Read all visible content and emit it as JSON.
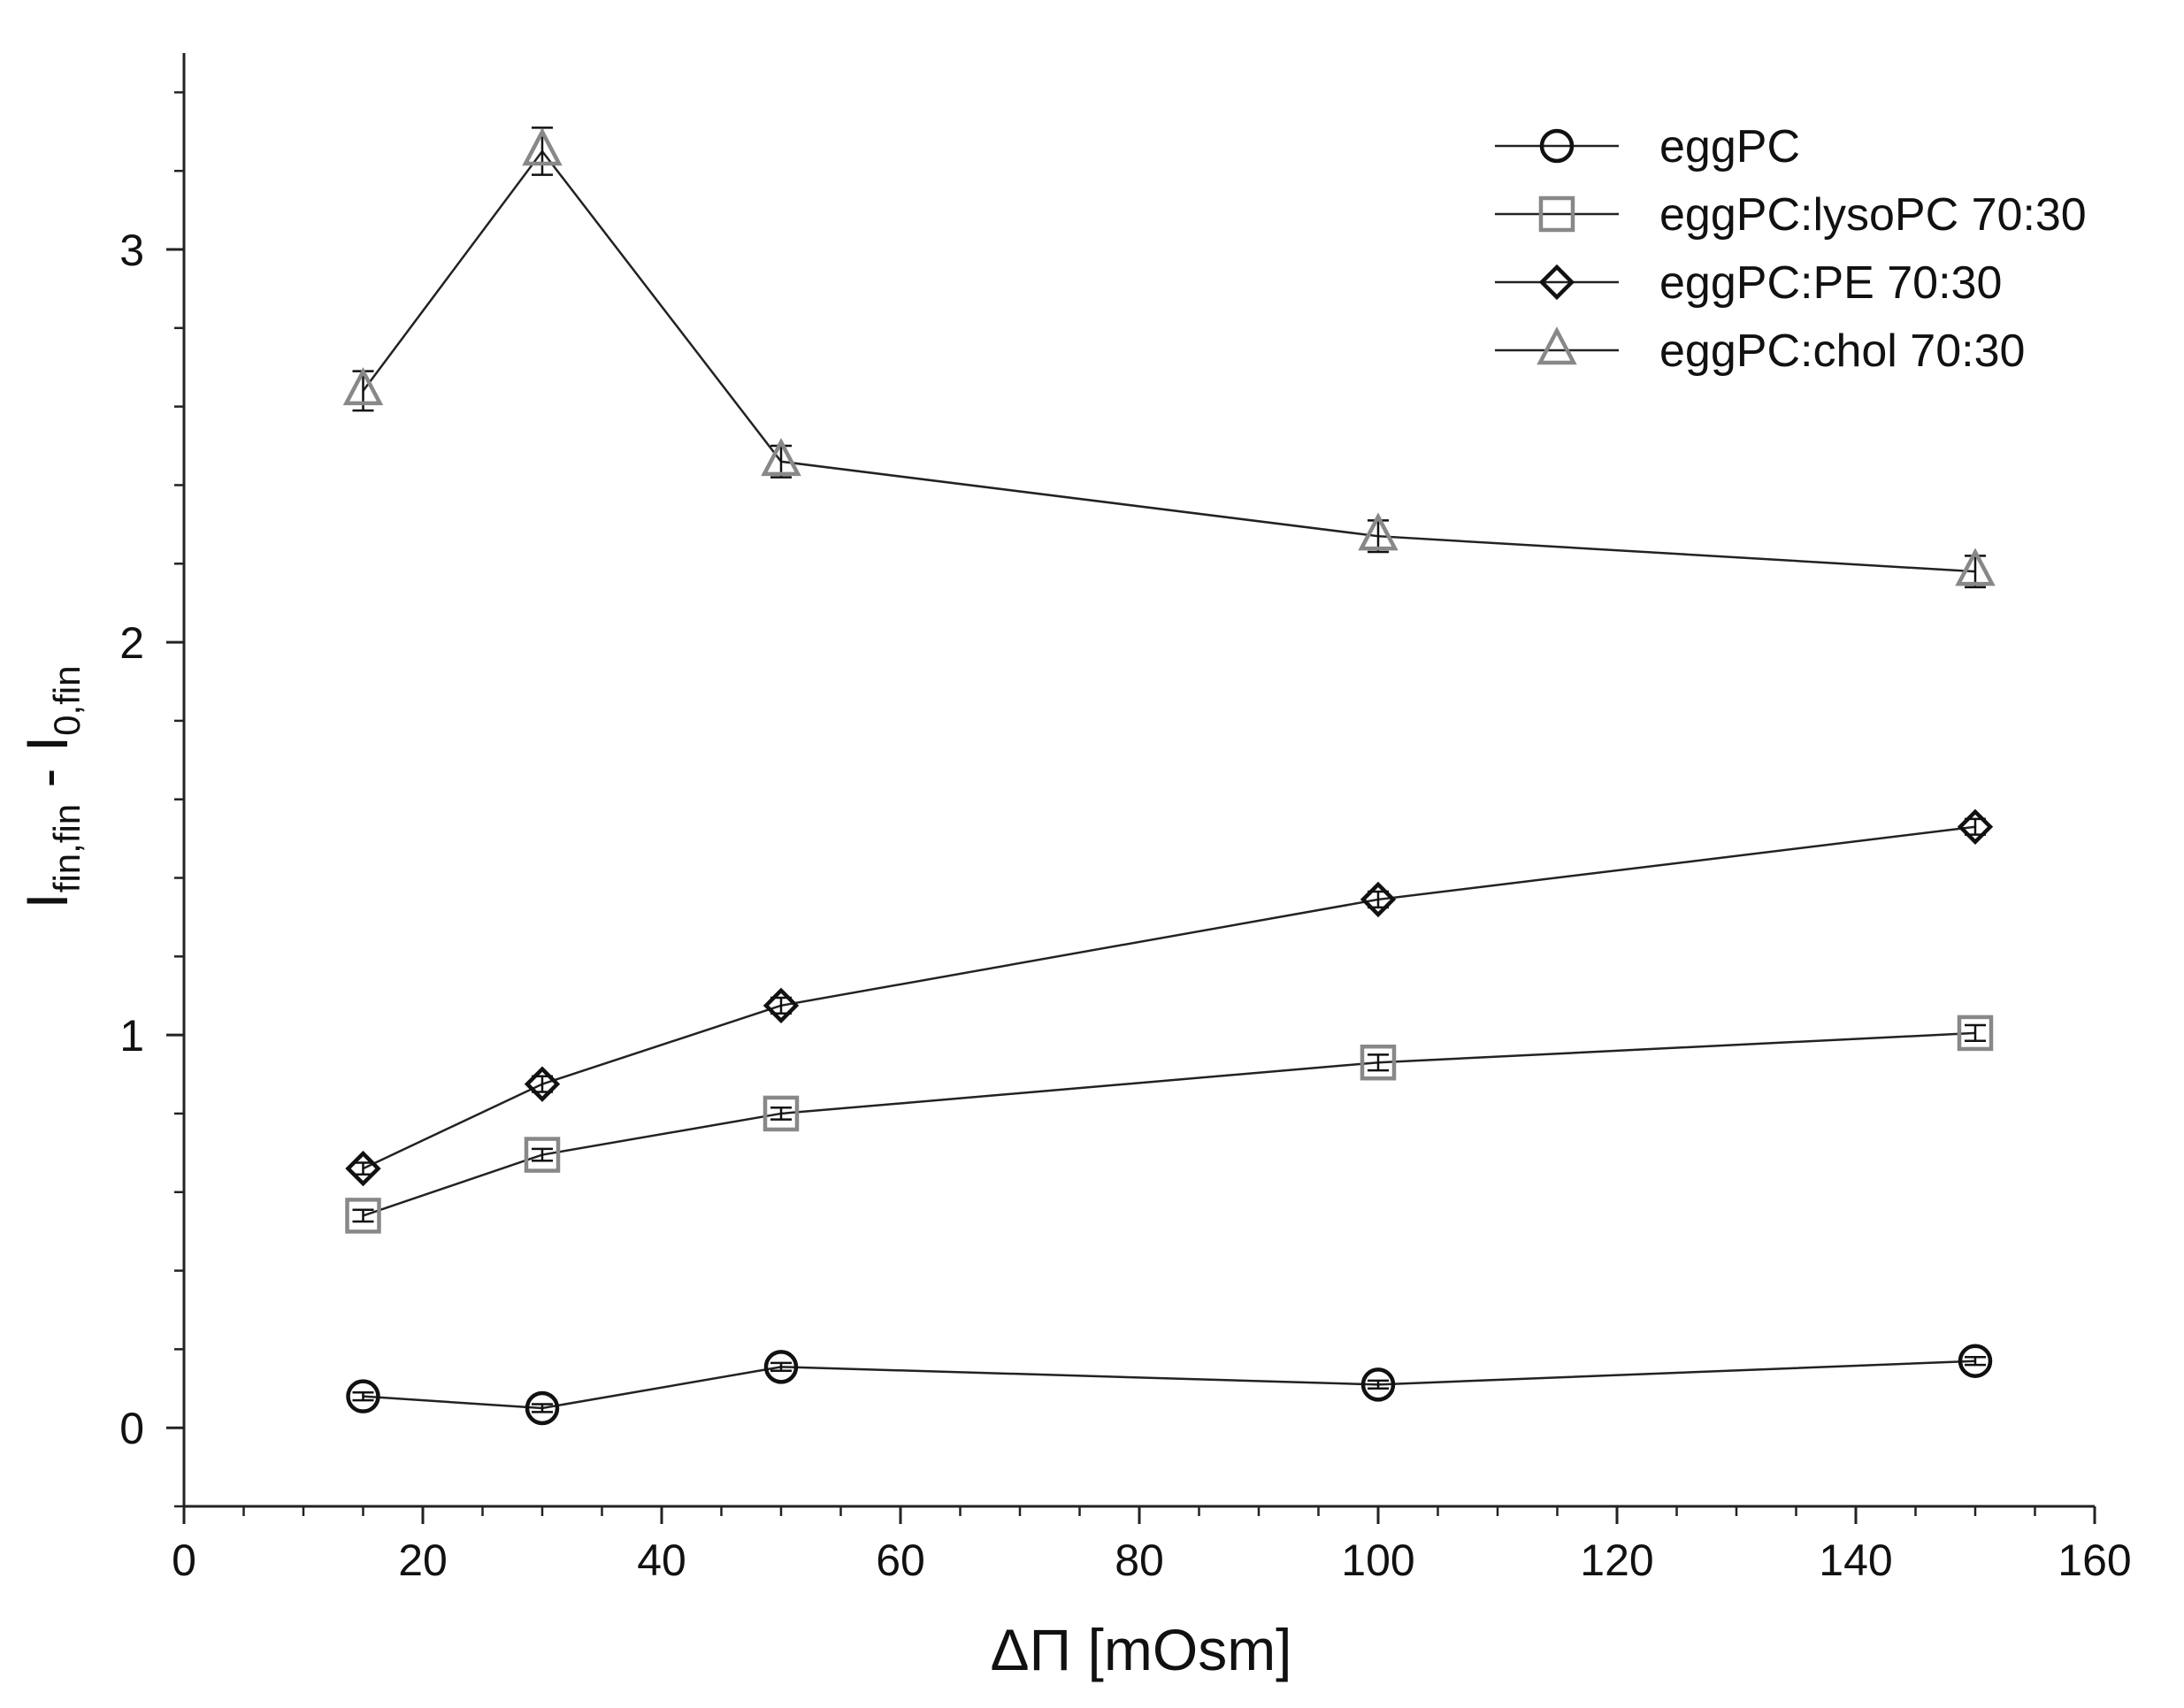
{
  "chart_data": {
    "type": "line",
    "xlabel": "ΔΠ [mOsm]",
    "ylabel": {
      "main": "I",
      "sub1": "fin,fin",
      "minus": " - I",
      "sub2": "0,fin"
    },
    "xlim": [
      0,
      160
    ],
    "ylim": [
      -0.2,
      3.5
    ],
    "x_ticks": [
      0,
      20,
      40,
      60,
      80,
      100,
      120,
      140,
      160
    ],
    "y_ticks": [
      0,
      1,
      2,
      3
    ],
    "x_minor_step": 5,
    "y_minor_step": 0.2,
    "grid": false,
    "legend_position": "top-right",
    "x": [
      15,
      30,
      50,
      100,
      150
    ],
    "series": [
      {
        "name": "eggPC",
        "marker": "circle",
        "color": "#111111",
        "values": [
          0.08,
          0.05,
          0.155,
          0.11,
          0.17
        ],
        "errors": [
          0.01,
          0.01,
          0.01,
          0.01,
          0.01
        ]
      },
      {
        "name": "eggPC:lysoPC 70:30",
        "marker": "square",
        "color": "#888888",
        "values": [
          0.54,
          0.695,
          0.8,
          0.93,
          1.005
        ],
        "errors": [
          0.015,
          0.015,
          0.015,
          0.02,
          0.02
        ]
      },
      {
        "name": "eggPC:PE 70:30",
        "marker": "diamond",
        "color": "#111111",
        "values": [
          0.66,
          0.875,
          1.075,
          1.345,
          1.53
        ],
        "errors": [
          0.015,
          0.02,
          0.02,
          0.02,
          0.02
        ]
      },
      {
        "name": "eggPC:chol 70:30",
        "marker": "triangle",
        "color": "#888888",
        "values": [
          2.64,
          3.25,
          2.46,
          2.27,
          2.18
        ],
        "errors": [
          0.05,
          0.06,
          0.04,
          0.04,
          0.04
        ]
      }
    ]
  }
}
